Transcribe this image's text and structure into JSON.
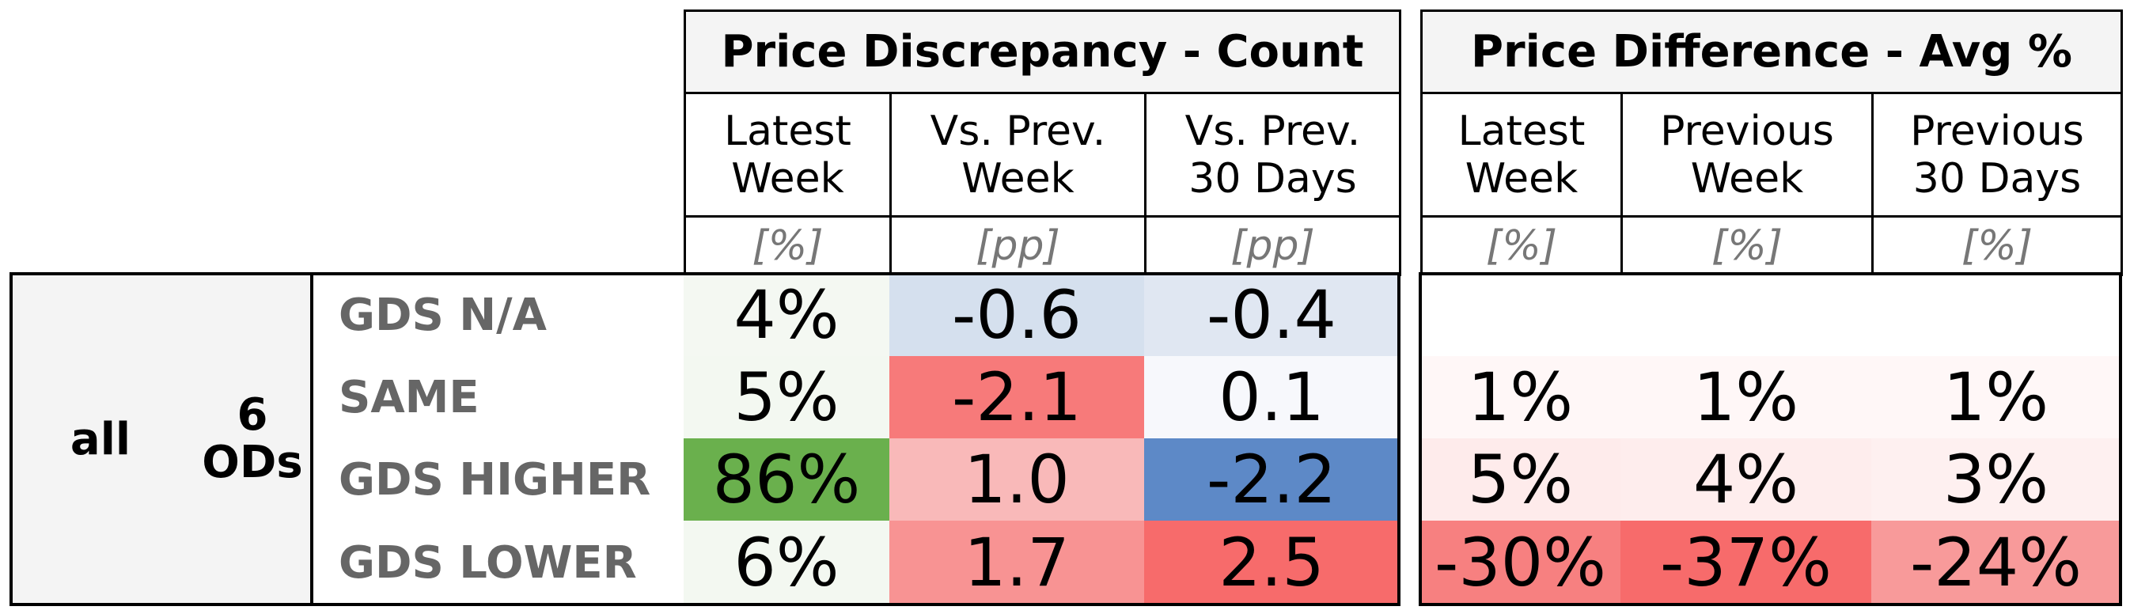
{
  "chart_data": {
    "type": "table",
    "groups": [
      {
        "title": "Price Discrepancy - Count"
      },
      {
        "title": "Price Difference - Avg %"
      }
    ],
    "columns": [
      {
        "label": "Latest\nWeek",
        "unit": "[%]"
      },
      {
        "label": "Vs. Prev.\nWeek",
        "unit": "[pp]"
      },
      {
        "label": "Vs. Prev.\n30 Days",
        "unit": "[pp]"
      },
      {
        "label": "Latest\nWeek",
        "unit": "[%]"
      },
      {
        "label": "Previous\nWeek",
        "unit": "[%]"
      },
      {
        "label": "Previous\n30 Days",
        "unit": "[%]"
      }
    ],
    "segment": "all",
    "od_count": "6\nODs",
    "rows": [
      {
        "label": "GDS N/A",
        "cells": [
          {
            "text": "4%",
            "color": "#f4f8f2"
          },
          {
            "text": "-0.6",
            "color": "#d5e0ee"
          },
          {
            "text": "-0.4",
            "color": "#e0e7f2"
          },
          {
            "text": "",
            "color": "#ffffff"
          },
          {
            "text": "",
            "color": "#ffffff"
          },
          {
            "text": "",
            "color": "#ffffff"
          }
        ]
      },
      {
        "label": "SAME",
        "cells": [
          {
            "text": "5%",
            "color": "#f3f8f1"
          },
          {
            "text": "-2.1",
            "color": "#f77a7a"
          },
          {
            "text": "0.1",
            "color": "#f7f8fc"
          },
          {
            "text": "1%",
            "color": "#fff7f7"
          },
          {
            "text": "1%",
            "color": "#fff7f7"
          },
          {
            "text": "1%",
            "color": "#fff7f7"
          }
        ]
      },
      {
        "label": "GDS HIGHER",
        "cells": [
          {
            "text": "86%",
            "color": "#6ab04d"
          },
          {
            "text": "1.0",
            "color": "#f9b9b9"
          },
          {
            "text": "-2.2",
            "color": "#5d89c7"
          },
          {
            "text": "5%",
            "color": "#feebeb"
          },
          {
            "text": "4%",
            "color": "#feeded"
          },
          {
            "text": "3%",
            "color": "#fef0f0"
          }
        ]
      },
      {
        "label": "GDS LOWER",
        "cells": [
          {
            "text": "6%",
            "color": "#f3f8f1"
          },
          {
            "text": "1.7",
            "color": "#f89393"
          },
          {
            "text": "2.5",
            "color": "#f76b6b"
          },
          {
            "text": "-30%",
            "color": "#f78080"
          },
          {
            "text": "-37%",
            "color": "#f76b6b"
          },
          {
            "text": "-24%",
            "color": "#f89a9a"
          }
        ]
      }
    ]
  }
}
